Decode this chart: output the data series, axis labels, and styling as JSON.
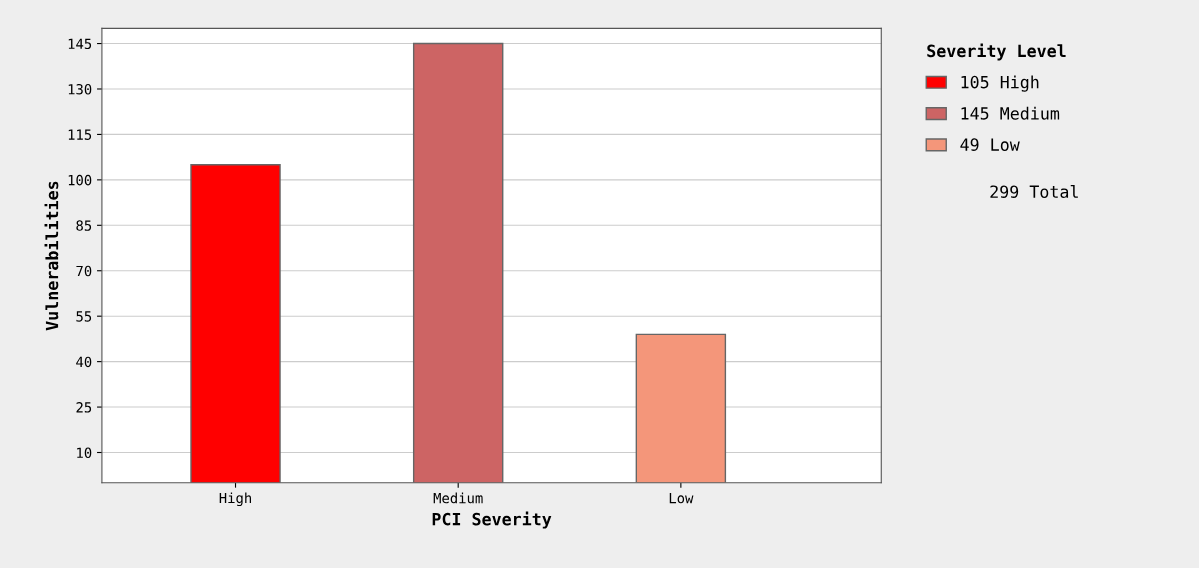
{
  "chart_data": {
    "type": "bar",
    "xlabel": "PCI Severity",
    "ylabel": "Vulnerabilities",
    "categories": [
      "High",
      "Medium",
      "Low"
    ],
    "series": [
      {
        "name": "105 High",
        "color": "#ff0000",
        "values": [
          105,
          null,
          null
        ]
      },
      {
        "name": "145 Medium",
        "color": "#cd6464",
        "values": [
          null,
          145,
          null
        ]
      },
      {
        "name": "49 Low",
        "color": "#f4967a",
        "values": [
          null,
          null,
          49
        ]
      }
    ],
    "ylim": [
      0,
      150
    ],
    "yticks": [
      10,
      25,
      40,
      55,
      70,
      85,
      100,
      115,
      130,
      145
    ],
    "grid": "y",
    "legend": "top right",
    "legend_title": "Severity Level",
    "annotations": [
      "299 Total"
    ]
  }
}
